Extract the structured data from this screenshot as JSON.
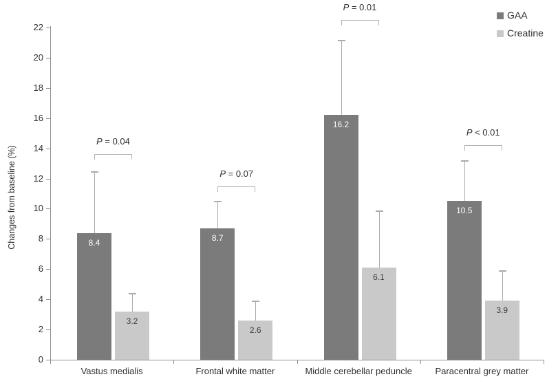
{
  "figure": {
    "background": "#ffffff",
    "axis_color": "#8f8f8f",
    "text_color": "#2f2f2f",
    "error_bar_color": "#ababab",
    "bracket_color": "#b2b2b2"
  },
  "chart_data": {
    "type": "bar",
    "title": "",
    "xlabel": "",
    "ylabel": "Changes from baseline (%)",
    "ylim": [
      0,
      22
    ],
    "ytick_step": 2,
    "grid": false,
    "legend_position": "top-right",
    "categories": [
      "Vastus medialis",
      "Frontal white matter",
      "Middle cerebellar peduncle",
      "Paracentral grey matter"
    ],
    "series": [
      {
        "name": "GAA",
        "color": "#7b7b7b",
        "label_color": "#ffffff",
        "values": [
          8.4,
          8.7,
          16.2,
          10.5
        ],
        "error_tops": [
          12.5,
          10.5,
          21.2,
          13.2
        ]
      },
      {
        "name": "Creatine",
        "color": "#c9c9c9",
        "label_color": "#3a3a3a",
        "values": [
          3.2,
          2.6,
          6.1,
          3.9
        ],
        "error_tops": [
          4.4,
          3.9,
          9.9,
          5.9
        ]
      }
    ],
    "p_values": [
      "P = 0.04",
      "P = 0.07",
      "P = 0.01",
      "P < 0.01"
    ],
    "bracket_tops": [
      13.6,
      11.5,
      22.5,
      14.2
    ]
  }
}
